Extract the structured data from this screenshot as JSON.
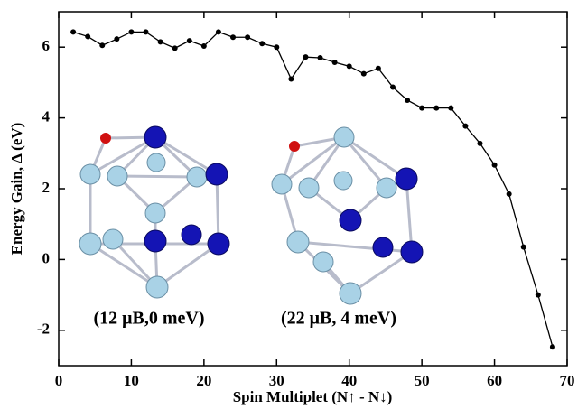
{
  "chart_data": {
    "type": "line",
    "xlabel": "Spin Multiplet (N↑ - N↓)",
    "ylabel": "Energy Gain, Δ (eV)",
    "annotations": [
      "(12 μB,0 meV)",
      "(22 μB, 4 meV)"
    ],
    "x": [
      2,
      4,
      6,
      8,
      10,
      12,
      14,
      16,
      18,
      20,
      22,
      24,
      26,
      28,
      30,
      32,
      34,
      36,
      38,
      40,
      42,
      44,
      46,
      48,
      50,
      52,
      54,
      56,
      58,
      60,
      62,
      64,
      66,
      68
    ],
    "series": [
      {
        "color": "#000000",
        "values": [
          6.43,
          6.3,
          6.05,
          6.23,
          6.43,
          6.43,
          6.15,
          5.97,
          6.18,
          6.03,
          6.43,
          6.28,
          6.28,
          6.1,
          6.0,
          5.1,
          5.72,
          5.7,
          5.57,
          5.46,
          5.25,
          5.4,
          4.87,
          4.5,
          4.28,
          4.28,
          4.28,
          3.77,
          3.28,
          2.67,
          1.85,
          0.35,
          -1.0,
          -2.47
        ]
      }
    ],
    "xlim": [
      0,
      70
    ],
    "xticks": [
      0,
      10,
      20,
      30,
      40,
      50,
      60,
      70
    ],
    "ylim": [
      -3,
      7
    ],
    "yticks": [
      -2,
      0,
      2,
      4,
      6
    ]
  }
}
